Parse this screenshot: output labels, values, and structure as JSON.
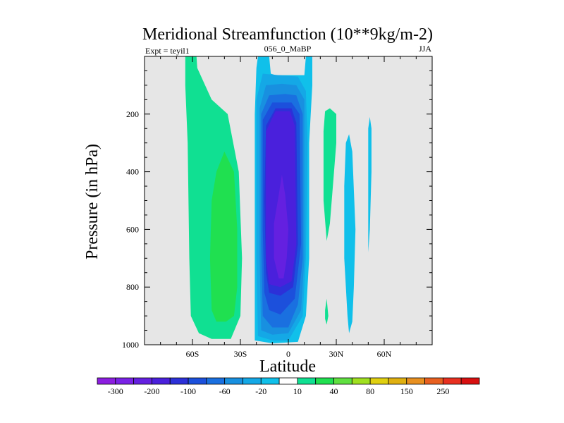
{
  "chart_data": {
    "type": "contour",
    "title": "Meridional Streamfunction (10**9kg/m-2)",
    "subtitle_left": "Expt = teyil1",
    "subtitle_center": "056_0_MaBP",
    "subtitle_right": "JJA",
    "xlabel": "Latitude",
    "ylabel": "Pressure (in hPa)",
    "xlim": [
      -90,
      90
    ],
    "ylim": [
      1000,
      0
    ],
    "x_ticks": [
      {
        "value": -60,
        "label": "60S"
      },
      {
        "value": -30,
        "label": "30S"
      },
      {
        "value": 0,
        "label": "0"
      },
      {
        "value": 30,
        "label": "30N"
      },
      {
        "value": 60,
        "label": "60N"
      }
    ],
    "y_ticks": [
      {
        "value": 200,
        "label": "200"
      },
      {
        "value": 400,
        "label": "400"
      },
      {
        "value": 600,
        "label": "600"
      },
      {
        "value": 800,
        "label": "800"
      },
      {
        "value": 1000,
        "label": "1000"
      }
    ],
    "background_color": "#e6e6e6",
    "colorbar": {
      "colors": [
        "#8c1ee0",
        "#7a22e6",
        "#6420e0",
        "#4a20dc",
        "#2c30d8",
        "#1c50dc",
        "#1a70e0",
        "#1890e0",
        "#14a8e6",
        "#10c0ea",
        "#ffffff",
        "#10e092",
        "#20e050",
        "#60e040",
        "#a0e020",
        "#e0d010",
        "#e0b010",
        "#e89020",
        "#e86020",
        "#e83020",
        "#d81010"
      ],
      "labels": [
        {
          "index": 1,
          "text": "-300"
        },
        {
          "index": 3,
          "text": "-200"
        },
        {
          "index": 5,
          "text": "-100"
        },
        {
          "index": 7,
          "text": "-60"
        },
        {
          "index": 9,
          "text": "-20"
        },
        {
          "index": 11,
          "text": "10"
        },
        {
          "index": 13,
          "text": "40"
        },
        {
          "index": 15,
          "text": "80"
        },
        {
          "index": 17,
          "text": "150"
        },
        {
          "index": 19,
          "text": "250"
        }
      ]
    },
    "regions": [
      {
        "name": "sh-ferrel-outer-cell",
        "level": "10",
        "color": "#10e092",
        "points": [
          [
            -64.5,
            0
          ],
          [
            -57.5,
            0
          ],
          [
            -57,
            40
          ],
          [
            -48,
            150
          ],
          [
            -38,
            200
          ],
          [
            -31,
            400
          ],
          [
            -29,
            700
          ],
          [
            -30,
            900
          ],
          [
            -36,
            980
          ],
          [
            -48,
            980
          ],
          [
            -56,
            960
          ],
          [
            -61,
            900
          ],
          [
            -62,
            700
          ],
          [
            -63,
            300
          ],
          [
            -64.5,
            100
          ]
        ]
      },
      {
        "name": "sh-ferrel-inner-cell",
        "level": "40",
        "color": "#20e050",
        "points": [
          [
            -45,
            400
          ],
          [
            -40,
            330
          ],
          [
            -34,
            400
          ],
          [
            -32,
            600
          ],
          [
            -32,
            800
          ],
          [
            -34,
            900
          ],
          [
            -39,
            920
          ],
          [
            -45,
            920
          ],
          [
            -48,
            880
          ],
          [
            -49,
            700
          ],
          [
            -48,
            500
          ]
        ]
      },
      {
        "name": "hadley-cell-level-1",
        "level": "-20",
        "color": "#10c0ea",
        "points": [
          [
            -20,
            40
          ],
          [
            -19,
            0
          ],
          [
            -12,
            0
          ],
          [
            -11,
            60
          ],
          [
            -8,
            65
          ],
          [
            10,
            65
          ],
          [
            11,
            0
          ],
          [
            15,
            0
          ],
          [
            15,
            100
          ],
          [
            13,
            300
          ],
          [
            13,
            700
          ],
          [
            11,
            900
          ],
          [
            6,
            990
          ],
          [
            -10,
            995
          ],
          [
            -21,
            985
          ],
          [
            -21,
            800
          ],
          [
            -21,
            400
          ],
          [
            -21,
            200
          ]
        ]
      },
      {
        "name": "hadley-cell-level-2",
        "level": "-40",
        "color": "#14a8e6",
        "points": [
          [
            -20,
            150
          ],
          [
            -16,
            60
          ],
          [
            -6,
            65
          ],
          [
            6,
            70
          ],
          [
            11,
            120
          ],
          [
            12,
            300
          ],
          [
            11,
            700
          ],
          [
            9,
            900
          ],
          [
            0,
            985
          ],
          [
            -10,
            985
          ],
          [
            -19,
            970
          ],
          [
            -20,
            700
          ],
          [
            -20,
            300
          ]
        ]
      },
      {
        "name": "hadley-cell-level-3",
        "level": "-60",
        "color": "#1890e0",
        "points": [
          [
            -18,
            180
          ],
          [
            -14,
            100
          ],
          [
            -4,
            95
          ],
          [
            5,
            100
          ],
          [
            10,
            150
          ],
          [
            10,
            700
          ],
          [
            8,
            880
          ],
          [
            0,
            960
          ],
          [
            -10,
            965
          ],
          [
            -17,
            950
          ],
          [
            -18,
            700
          ]
        ]
      },
      {
        "name": "hadley-cell-level-4",
        "level": "-80",
        "color": "#1a70e0",
        "points": [
          [
            -17,
            200
          ],
          [
            -12,
            135
          ],
          [
            -2,
            130
          ],
          [
            5,
            135
          ],
          [
            9,
            200
          ],
          [
            9,
            700
          ],
          [
            6,
            860
          ],
          [
            0,
            940
          ],
          [
            -10,
            940
          ],
          [
            -16,
            900
          ],
          [
            -17,
            650
          ]
        ]
      },
      {
        "name": "hadley-cell-level-5",
        "level": "-100",
        "color": "#1c50dc",
        "points": [
          [
            -16,
            220
          ],
          [
            -10,
            160
          ],
          [
            2,
            160
          ],
          [
            7,
            200
          ],
          [
            8,
            650
          ],
          [
            4,
            840
          ],
          [
            -5,
            895
          ],
          [
            -12,
            880
          ],
          [
            -15,
            820
          ],
          [
            -16,
            600
          ]
        ]
      },
      {
        "name": "hadley-cell-level-6",
        "level": "-150",
        "color": "#2c30d8",
        "points": [
          [
            -14,
            240
          ],
          [
            -8,
            180
          ],
          [
            2,
            180
          ],
          [
            5,
            230
          ],
          [
            6,
            650
          ],
          [
            3,
            800
          ],
          [
            -5,
            830
          ],
          [
            -12,
            820
          ],
          [
            -14,
            750
          ],
          [
            -15,
            500
          ]
        ]
      },
      {
        "name": "hadley-cell-level-7",
        "level": "-200",
        "color": "#4a20dc",
        "points": [
          [
            -14,
            260
          ],
          [
            -8,
            190
          ],
          [
            1,
            190
          ],
          [
            4,
            240
          ],
          [
            5,
            650
          ],
          [
            2,
            780
          ],
          [
            -5,
            800
          ],
          [
            -12,
            790
          ],
          [
            -14,
            700
          ],
          [
            -14,
            500
          ]
        ]
      },
      {
        "name": "hadley-cell-core",
        "level": "-250",
        "color": "#6420e0",
        "points": [
          [
            -6,
            480
          ],
          [
            -4,
            410
          ],
          [
            -2,
            480
          ],
          [
            0,
            600
          ],
          [
            -1,
            700
          ],
          [
            -3,
            770
          ],
          [
            -6,
            770
          ],
          [
            -9,
            700
          ],
          [
            -9,
            580
          ]
        ]
      },
      {
        "name": "nh-positive-column",
        "level": "10",
        "color": "#10e092",
        "points": [
          [
            22,
            260
          ],
          [
            23,
            190
          ],
          [
            26,
            180
          ],
          [
            30,
            200
          ],
          [
            30,
            300
          ],
          [
            28,
            440
          ],
          [
            26,
            580
          ],
          [
            24,
            640
          ],
          [
            22,
            500
          ],
          [
            22,
            350
          ]
        ]
      },
      {
        "name": "nh-positive-blob",
        "level": "10",
        "color": "#10e092",
        "points": [
          [
            23,
            880
          ],
          [
            24,
            840
          ],
          [
            25,
            900
          ],
          [
            24,
            930
          ],
          [
            23,
            910
          ]
        ]
      },
      {
        "name": "nh-negative-column",
        "level": "-20",
        "color": "#10c0ea",
        "points": [
          [
            36,
            300
          ],
          [
            38,
            270
          ],
          [
            40,
            330
          ],
          [
            42,
            600
          ],
          [
            41,
            800
          ],
          [
            40,
            920
          ],
          [
            38,
            960
          ],
          [
            37,
            900
          ],
          [
            35,
            700
          ],
          [
            35,
            450
          ]
        ]
      },
      {
        "name": "nh-negative-sliver",
        "level": "-20",
        "color": "#10c0ea",
        "points": [
          [
            50,
            250
          ],
          [
            51,
            210
          ],
          [
            52,
            250
          ],
          [
            52,
            400
          ],
          [
            51,
            600
          ],
          [
            50,
            680
          ],
          [
            50,
            400
          ]
        ]
      }
    ]
  }
}
